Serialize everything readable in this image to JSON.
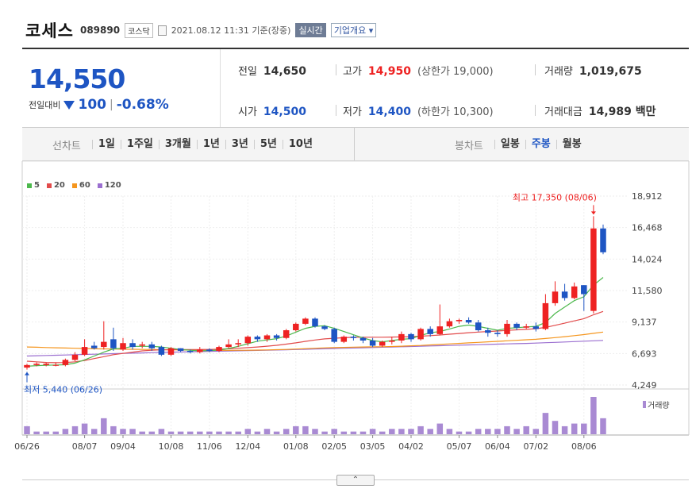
{
  "header": {
    "name": "코세스",
    "code": "089890",
    "market": "코스닥",
    "datetime": "2021.08.12 11:31 기준(장중)",
    "realtime_label": "실시간",
    "corp_label": "기업개요 ▾"
  },
  "quote": {
    "price": "14,550",
    "change_label": "전일대비",
    "change_value": "100",
    "change_pct": "-0.68%",
    "prev_close_label": "전일",
    "prev_close": "14,650",
    "high_label": "고가",
    "high": "14,950",
    "upper_limit": "(상한가 19,000)",
    "volume_label": "거래량",
    "volume": "1,019,675",
    "open_label": "시가",
    "open": "14,500",
    "low_label": "저가",
    "low": "14,400",
    "lower_limit": "(하한가 10,300)",
    "amount_label": "거래대금",
    "amount": "14,989 백만"
  },
  "line_tabs": {
    "title": "선차트",
    "items": [
      "1일",
      "1주일",
      "3개월",
      "1년",
      "3년",
      "5년",
      "10년"
    ]
  },
  "candle_tabs": {
    "title": "봉차트",
    "items": [
      "일봉",
      "주봉",
      "월봉"
    ],
    "selected": "주봉"
  },
  "legend": [
    {
      "label": "5",
      "color": "#4cb84c"
    },
    {
      "label": "20",
      "color": "#e24b4b"
    },
    {
      "label": "60",
      "color": "#f5961e"
    },
    {
      "label": "120",
      "color": "#9b6fd0"
    }
  ],
  "toggle_label": "⌃",
  "chart_data": {
    "type": "candlestick",
    "y_ticks": [
      "18,912",
      "16,468",
      "14,024",
      "11,580",
      "9,137",
      "6,693",
      "4,249"
    ],
    "ylim": [
      4249,
      18912
    ],
    "x_labels": [
      "06/26",
      "08/07",
      "09/04",
      "10/08",
      "11/06",
      "12/04",
      "01/08",
      "02/05",
      "03/05",
      "04/02",
      "05/07",
      "06/04",
      "07/02",
      "08/06"
    ],
    "x_label_index": [
      0,
      6,
      10,
      15,
      19,
      23,
      28,
      32,
      36,
      40,
      45,
      49,
      53,
      58
    ],
    "high_annotation": "최고 17,350 (08/06)",
    "low_annotation": "최저 5,440 (06/26)",
    "volume_label": "거래량",
    "candles": [
      [
        5600,
        5800,
        5440,
        5900
      ],
      [
        5800,
        5900,
        5700,
        6000
      ],
      [
        5800,
        5900,
        5700,
        6000
      ],
      [
        5800,
        5800,
        5700,
        6000
      ],
      [
        5800,
        6200,
        5700,
        6300
      ],
      [
        6200,
        6600,
        6100,
        6800
      ],
      [
        6600,
        7200,
        6500,
        7800
      ],
      [
        7300,
        7100,
        7000,
        7600
      ],
      [
        7200,
        7600,
        7000,
        9200
      ],
      [
        7800,
        7100,
        6900,
        8700
      ],
      [
        7000,
        7500,
        6900,
        7900
      ],
      [
        7500,
        7200,
        7000,
        7800
      ],
      [
        7300,
        7400,
        7100,
        7600
      ],
      [
        7400,
        7100,
        6900,
        7600
      ],
      [
        7200,
        6600,
        6500,
        7300
      ],
      [
        6600,
        7100,
        6500,
        7200
      ],
      [
        7100,
        6900,
        6800,
        7100
      ],
      [
        6900,
        6800,
        6700,
        7000
      ],
      [
        6800,
        7000,
        6700,
        7200
      ],
      [
        7000,
        6900,
        6800,
        7100
      ],
      [
        6900,
        7200,
        6800,
        7300
      ],
      [
        7200,
        7400,
        7100,
        7800
      ],
      [
        7400,
        7500,
        7200,
        7800
      ],
      [
        7500,
        8000,
        7300,
        8100
      ],
      [
        8000,
        7800,
        7600,
        8100
      ],
      [
        7800,
        8100,
        7600,
        8200
      ],
      [
        8100,
        7900,
        7700,
        8200
      ],
      [
        7900,
        8500,
        7800,
        8600
      ],
      [
        8500,
        9000,
        8400,
        9100
      ],
      [
        9000,
        9400,
        8900,
        9500
      ],
      [
        9400,
        8800,
        8700,
        9500
      ],
      [
        8800,
        8600,
        8500,
        8900
      ],
      [
        8600,
        7600,
        7500,
        8700
      ],
      [
        7600,
        8000,
        7500,
        8100
      ],
      [
        8000,
        7900,
        7700,
        8100
      ],
      [
        7900,
        7700,
        7500,
        8000
      ],
      [
        7700,
        7300,
        7200,
        7900
      ],
      [
        7300,
        7600,
        7200,
        7700
      ],
      [
        7600,
        7700,
        7400,
        8000
      ],
      [
        7700,
        8200,
        7500,
        8400
      ],
      [
        8200,
        7800,
        7600,
        8300
      ],
      [
        7800,
        8600,
        7700,
        8700
      ],
      [
        8600,
        8200,
        8000,
        8800
      ],
      [
        8200,
        8800,
        8100,
        10500
      ],
      [
        8800,
        9200,
        8700,
        9400
      ],
      [
        9200,
        9300,
        9000,
        9400
      ],
      [
        9300,
        9100,
        9000,
        9500
      ],
      [
        9100,
        8500,
        8400,
        9300
      ],
      [
        8500,
        8300,
        8000,
        8700
      ],
      [
        8300,
        8200,
        8000,
        8500
      ],
      [
        8200,
        9000,
        8000,
        9300
      ],
      [
        9000,
        8700,
        8500,
        9100
      ],
      [
        8700,
        8800,
        8600,
        9000
      ],
      [
        8800,
        8600,
        8400,
        9100
      ],
      [
        8600,
        10600,
        8500,
        11300
      ],
      [
        10600,
        11500,
        10400,
        12300
      ],
      [
        11500,
        11000,
        10800,
        12100
      ],
      [
        11000,
        11900,
        10900,
        12200
      ],
      [
        12000,
        11300,
        10000,
        12000
      ],
      [
        10000,
        16400,
        9800,
        17350
      ],
      [
        16400,
        14550,
        14400,
        16700
      ]
    ],
    "volumes": [
      3,
      1,
      1,
      1,
      2,
      3,
      4,
      2,
      6,
      3,
      2,
      2,
      1,
      1,
      2,
      1,
      1,
      1,
      1,
      1,
      1,
      1,
      1,
      2,
      1,
      2,
      1,
      2,
      3,
      3,
      2,
      1,
      2,
      1,
      1,
      1,
      2,
      1,
      2,
      2,
      2,
      3,
      2,
      4,
      2,
      1,
      1,
      2,
      2,
      2,
      3,
      2,
      3,
      2,
      8,
      5,
      3,
      4,
      4,
      14,
      6
    ],
    "ma5": [
      5700,
      5750,
      5780,
      5800,
      5820,
      5950,
      6200,
      6500,
      6800,
      7050,
      7100,
      7250,
      7250,
      7250,
      7200,
      7100,
      7000,
      6950,
      6900,
      6920,
      6960,
      7080,
      7250,
      7450,
      7650,
      7750,
      7850,
      8050,
      8350,
      8650,
      8800,
      8850,
      8650,
      8400,
      8150,
      7900,
      7700,
      7600,
      7700,
      7800,
      7850,
      8100,
      8300,
      8400,
      8600,
      8800,
      8900,
      8800,
      8650,
      8500,
      8650,
      8700,
      8750,
      8800,
      9100,
      9800,
      10300,
      10800,
      11100,
      12000,
      12600
    ],
    "ma20": [
      6100,
      6050,
      6000,
      5980,
      5990,
      6050,
      6150,
      6300,
      6450,
      6600,
      6700,
      6800,
      6900,
      6950,
      6980,
      6990,
      7000,
      7000,
      7000,
      7010,
      7030,
      7060,
      7100,
      7150,
      7200,
      7260,
      7330,
      7420,
      7520,
      7640,
      7740,
      7830,
      7880,
      7920,
      7950,
      7960,
      7960,
      7960,
      7970,
      7980,
      8000,
      8040,
      8080,
      8130,
      8190,
      8250,
      8310,
      8360,
      8400,
      8440,
      8490,
      8530,
      8570,
      8620,
      8720,
      8880,
      9050,
      9230,
      9400,
      9700,
      9960
    ],
    "ma60": [
      7200,
      7180,
      7160,
      7140,
      7120,
      7100,
      7080,
      7060,
      7050,
      7040,
      7030,
      7020,
      7010,
      7000,
      6990,
      6980,
      6970,
      6960,
      6950,
      6945,
      6940,
      6940,
      6945,
      6950,
      6960,
      6975,
      6990,
      7010,
      7040,
      7070,
      7100,
      7130,
      7150,
      7170,
      7190,
      7200,
      7210,
      7220,
      7240,
      7260,
      7290,
      7320,
      7360,
      7400,
      7440,
      7480,
      7520,
      7560,
      7600,
      7640,
      7680,
      7720,
      7760,
      7800,
      7860,
      7930,
      8000,
      8080,
      8160,
      8260,
      8360
    ],
    "ma120": [
      6500,
      6520,
      6540,
      6560,
      6580,
      6600,
      6620,
      6640,
      6660,
      6680,
      6700,
      6720,
      6740,
      6760,
      6780,
      6800,
      6815,
      6830,
      6845,
      6860,
      6875,
      6890,
      6905,
      6920,
      6935,
      6950,
      6965,
      6980,
      7000,
      7020,
      7040,
      7060,
      7080,
      7100,
      7120,
      7140,
      7160,
      7180,
      7200,
      7220,
      7240,
      7260,
      7280,
      7300,
      7320,
      7340,
      7360,
      7380,
      7400,
      7420,
      7440,
      7460,
      7480,
      7500,
      7530,
      7560,
      7590,
      7620,
      7650,
      7680,
      7710
    ]
  }
}
